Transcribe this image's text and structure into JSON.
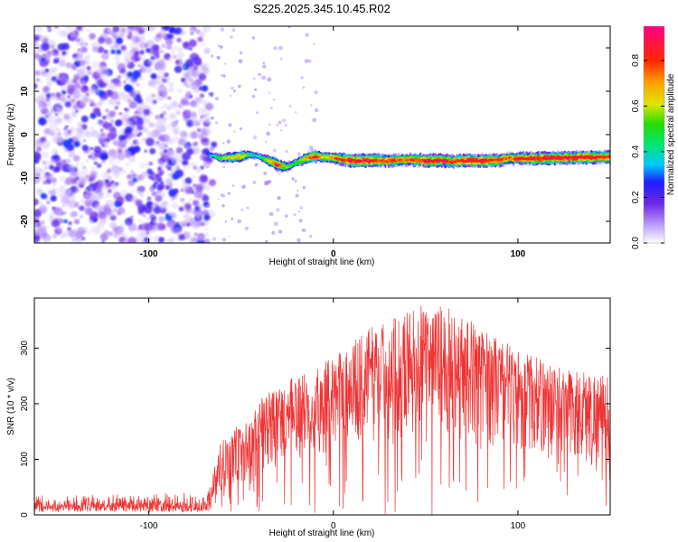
{
  "chart_data": [
    {
      "type": "heatmap",
      "title": "S225.2025.345.10.45.R02",
      "xlabel": "Height of straight line (km)",
      "ylabel": "Frequency (Hz)",
      "xlim": [
        -162,
        150
      ],
      "ylim": [
        -25,
        25
      ],
      "x_ticks": [
        -100,
        0,
        100
      ],
      "y_ticks": [
        -20,
        -10,
        0,
        10,
        20
      ],
      "noise_region_x": [
        -162,
        -68
      ],
      "signal_track": {
        "x": [
          -68,
          -60,
          -50,
          -45,
          -40,
          -35,
          -30,
          -25,
          -20,
          -15,
          -10,
          -5,
          0,
          5,
          10,
          20,
          30,
          40,
          50,
          60,
          65,
          70,
          80,
          90,
          95,
          100,
          110,
          120,
          130,
          140,
          150
        ],
        "frequency": [
          -4.5,
          -5.5,
          -5.0,
          -4.5,
          -5.0,
          -6.0,
          -7.0,
          -7.5,
          -6.5,
          -5.5,
          -5.0,
          -5.2,
          -5.3,
          -5.8,
          -6.0,
          -6.0,
          -6.0,
          -5.8,
          -6.0,
          -6.0,
          -6.2,
          -6.0,
          -6.0,
          -5.9,
          -5.5,
          -5.5,
          -5.5,
          -5.4,
          -5.3,
          -5.2,
          -5.2
        ],
        "amplitude": [
          0.3,
          0.6,
          0.8,
          0.5,
          0.4,
          0.7,
          0.9,
          0.6,
          0.5,
          0.8,
          0.9,
          0.7,
          0.8,
          0.9,
          0.95,
          0.95,
          0.9,
          0.85,
          0.95,
          0.95,
          0.9,
          0.95,
          0.95,
          0.9,
          0.85,
          0.9,
          0.95,
          0.95,
          0.95,
          0.95,
          0.9
        ]
      },
      "colorbar": {
        "label": "Normalized spectral amplitude",
        "range": [
          0,
          0.95
        ],
        "ticks": [
          "0.0",
          "0.2",
          "0.4",
          "0.6",
          "0.8"
        ],
        "tick_values": [
          0,
          0.2,
          0.4,
          0.6,
          0.8
        ]
      }
    },
    {
      "type": "line",
      "title": "",
      "xlabel": "Height of straight line (km)",
      "ylabel": "SNR (10 * v/v)",
      "xlim": [
        -162,
        150
      ],
      "ylim": [
        0,
        390
      ],
      "x_ticks": [
        -100,
        0,
        100
      ],
      "y_ticks": [
        0,
        100,
        200,
        300
      ],
      "color": "#ee3333",
      "envelope": {
        "x": [
          -162,
          -100,
          -68,
          -60,
          -45,
          -40,
          -30,
          -20,
          -10,
          0,
          10,
          20,
          30,
          40,
          50,
          60,
          70,
          80,
          90,
          100,
          110,
          120,
          130,
          140,
          150
        ],
        "upper": [
          40,
          42,
          42,
          150,
          170,
          210,
          230,
          250,
          265,
          285,
          310,
          340,
          350,
          370,
          380,
          375,
          360,
          340,
          320,
          300,
          285,
          270,
          265,
          260,
          250
        ],
        "lower": [
          0,
          0,
          0,
          30,
          40,
          60,
          80,
          90,
          100,
          110,
          120,
          130,
          130,
          140,
          140,
          135,
          130,
          125,
          120,
          110,
          100,
          90,
          80,
          70,
          60
        ]
      }
    }
  ]
}
